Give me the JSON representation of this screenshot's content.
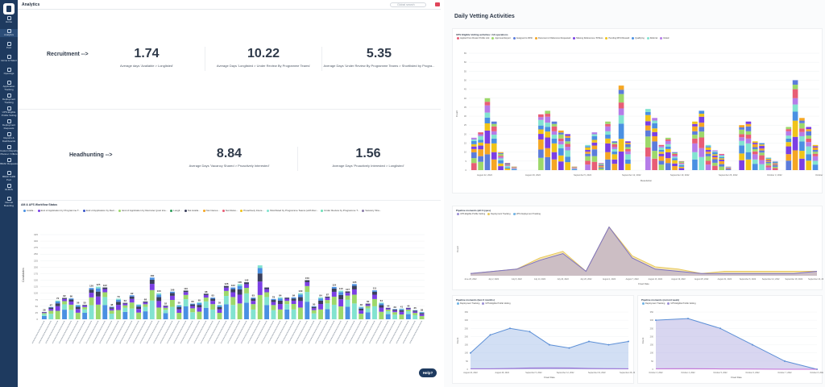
{
  "app": {
    "page_title": "Analytics",
    "search_placeholder": "Global search",
    "help_label": "Help?"
  },
  "sidebar": {
    "items": [
      {
        "label": "Home",
        "icon": "home-icon"
      },
      {
        "label": "Analytics",
        "icon": "chart-icon"
      },
      {
        "label": "Pool",
        "icon": "pool-icon"
      },
      {
        "label": "Home & Talent",
        "icon": "talent-icon"
      },
      {
        "label": "Openings",
        "icon": "openings-icon"
      },
      {
        "label": "Application Tracking",
        "icon": "tracking-icon"
      },
      {
        "label": "Deployment Tracking",
        "icon": "deploy-icon"
      },
      {
        "label": "UPS Eligible Profile Vetting",
        "icon": "vetting-icon"
      },
      {
        "label": "Deployment Requests",
        "icon": "request-icon"
      },
      {
        "label": "Reports & Dashboards",
        "icon": "reports-icon"
      },
      {
        "label": "Custom Reports Planner / Offers",
        "icon": "planner-icon"
      },
      {
        "label": "BRAF Requests",
        "icon": "braf-icon"
      },
      {
        "label": "BRAF Fulfill Pool",
        "icon": "fulfill-icon"
      },
      {
        "label": "ID-B4S",
        "icon": "id-icon"
      },
      {
        "label": "Internal Boarding",
        "icon": "boarding-icon"
      }
    ]
  },
  "kpis": {
    "recruitment_label": "Recruitment -->",
    "headhunting_label": "Headhunting -->",
    "cards": [
      {
        "value": "1.74",
        "label": "Average days 'Available > Longlisted'"
      },
      {
        "value": "10.22",
        "label": "Average Days 'Longlisted > Under Review By Programme Teams'"
      },
      {
        "value": "5.35",
        "label": "Average Days 'Under Review By Programme Teams > Shortlisted by Progra..."
      },
      {
        "value": "8.84",
        "label": "Average Days 'Vacancy Shared > Proactively Interested'"
      },
      {
        "value": "1.56",
        "label": "Average Days 'Proactively Interested > Longlisted'"
      }
    ]
  },
  "bottom_chart": {
    "title": "AM & AFS Workflow Status",
    "legend": [
      "Availa...",
      "End of Application by Programme T...",
      "End of Application by Recr...",
      "End of Application by Recruiter (post inte...",
      "Longli...",
      "Not Availa...",
      "Not Interes...",
      "Not Relev...",
      "Proactively Intere...",
      "Shortlisted by Programme Teams (with Rec...",
      "Under Review by Programme T...",
      "Vacancy Sha..."
    ],
    "ylabel": "Candidates",
    "yticks": [
      "0",
      "25",
      "50",
      "75",
      "100",
      "125",
      "150",
      "175",
      "200",
      "225",
      "250",
      "275",
      "300",
      "325"
    ],
    "colors": [
      "#4a90e2",
      "#7b3fe4",
      "#3a56c9",
      "#9dd86a",
      "#2e9e5b",
      "#3a3f5c",
      "#f5a623",
      "#e85d75",
      "#f0c419",
      "#82e3d0",
      "#6ee0b8",
      "#8a7ca8"
    ],
    "totals": [
      28,
      47,
      72,
      82,
      80,
      56,
      55,
      120,
      125,
      122,
      48,
      79,
      63,
      92,
      57,
      68,
      160,
      100,
      52,
      106,
      55,
      110,
      60,
      65,
      98,
      83,
      55,
      128,
      122,
      135,
      142,
      83,
      207,
      122,
      78,
      84,
      83,
      84,
      100,
      150,
      50,
      84,
      87,
      124,
      110,
      107,
      135,
      48,
      60,
      111,
      64,
      44,
      39,
      41,
      44,
      35,
      28
    ],
    "data_labels": [
      "28",
      "47",
      "72",
      "82",
      "80",
      "56",
      "55",
      "120",
      "125",
      "122",
      "48",
      "79",
      "63",
      "92",
      "",
      "68",
      "160",
      "100",
      "52",
      "106",
      "55",
      "110",
      "60",
      "65",
      "98",
      "83",
      "55",
      "128",
      "122",
      "135",
      "142",
      "83",
      "",
      "",
      "78",
      "84",
      "",
      "84",
      "100",
      "150",
      "50",
      "84",
      "87",
      "124",
      "110",
      "107",
      "135",
      "48",
      "60",
      "111",
      "64",
      "44",
      "39",
      "41",
      "44",
      "35",
      "28"
    ]
  },
  "right": {
    "section_title": "Daily Vetting Activities",
    "vetting_chart": {
      "title": "UPS Eligible Vetting activities / All operations",
      "legend": [
        "Applied from Roster Profile Link",
        "Approved Expert",
        "Assigned to RFSI",
        "Document & Reference Requested",
        "Missing References / B Boxs",
        "Pending RFSI Reward",
        "Qualifying",
        "Referral",
        "Vetted"
      ],
      "colors": [
        "#e85d75",
        "#9dd86a",
        "#5c7cdb",
        "#f5a623",
        "#7b3fe4",
        "#f0c419",
        "#4a90e2",
        "#82e3d0",
        "#b57ce8"
      ],
      "ylabel": "Count",
      "xlabel": "Resolution",
      "dates": [
        "August 22, 2022",
        "August 29, 2022",
        "September 5, 2022",
        "September 12, 2022",
        "September 19, 2022",
        "September 26, 2022",
        "October 3, 2022",
        "October 10, 2022"
      ],
      "yticks": [
        "0",
        "5",
        "10",
        "15",
        "20",
        "25",
        "30",
        "35",
        "40",
        "45",
        "50",
        "55",
        "60",
        "65"
      ],
      "totals": [
        18,
        21,
        40,
        27,
        10,
        4,
        2,
        0,
        0,
        0,
        31,
        33,
        27,
        22,
        20,
        2,
        0,
        14,
        21,
        4,
        27,
        16,
        47,
        16,
        0,
        0,
        34,
        29,
        14,
        18,
        10,
        5,
        0,
        27,
        33,
        14,
        11,
        9,
        2,
        0,
        25,
        27,
        16,
        15,
        7,
        5,
        0,
        24,
        50,
        29,
        24,
        14
      ],
      "top_labels": [
        "",
        "",
        "",
        "",
        "",
        "",
        "",
        "",
        "",
        "",
        "",
        "",
        "",
        "",
        "",
        "",
        "",
        "",
        "",
        "",
        "",
        "",
        "",
        "",
        "",
        "",
        "",
        "",
        "",
        "",
        "",
        "",
        "",
        "",
        "",
        "",
        "",
        "",
        "",
        "",
        "",
        "",
        "",
        "",
        "",
        "",
        "",
        "",
        "",
        "",
        "",
        ""
      ]
    },
    "area1": {
      "title": "Pipeline moments (all 3 types)",
      "legend": [
        "UPS Eligible Profile Vetting",
        "Deployment Tracking",
        "UPS Deployment Tracking"
      ],
      "colors": [
        "#9b8fd6",
        "#e8c85a",
        "#6fb3e6"
      ],
      "xlabel": "Fixed Date",
      "ylabel": "Count",
      "dates": [
        "June 26, 2022",
        "July 2, 2022",
        "July 8, 2022",
        "July 14, 2022",
        "July 20, 2022",
        "July 26, 2022",
        "August 1, 2022",
        "August 7, 2022",
        "August 13, 2022",
        "August 19, 2022",
        "August 25, 2022",
        "August 31, 2022",
        "September 6, 2022",
        "September 12, 2022",
        "September 18, 2022",
        "September 24, 2022"
      ],
      "series_main": [
        1,
        2,
        3,
        7,
        10,
        2,
        22,
        8,
        3,
        2,
        1,
        1,
        1,
        1,
        1,
        2
      ],
      "series_secondary": [
        1,
        2,
        3,
        8,
        11,
        2,
        22,
        9,
        4,
        3,
        1,
        2,
        2,
        2,
        2,
        2
      ]
    },
    "area2": {
      "title": "Pipeline moments (last 3 months)",
      "legend": [
        "Deployment Tracking",
        "UPS Eligible Profile Vetting"
      ],
      "colors": [
        "#6fb3e6",
        "#9b8fd6"
      ],
      "xlabel": "Fixed Date",
      "ylabel": "Count",
      "dates": [
        "August 22, 2022",
        "August 29, 2022",
        "September 5, 2022",
        "September 12, 2022",
        "September 19, 2022",
        "September 26, 2022"
      ],
      "yticks": [
        "0",
        "50",
        "100",
        "150",
        "200",
        "250",
        "300",
        "350"
      ],
      "main": [
        100,
        210,
        250,
        230,
        150,
        130,
        170,
        150,
        170
      ],
      "lower": [
        3,
        3,
        5,
        8,
        9,
        8,
        5,
        4,
        3
      ]
    },
    "area3": {
      "title": "Pipeline moments (current week)",
      "legend": [
        "Deployment Tracking",
        "UPS Eligible Profile Vetting"
      ],
      "colors": [
        "#6fb3e6",
        "#9b8fd6"
      ],
      "xlabel": "Fixed Date",
      "ylabel": "Count",
      "dates": [
        "October 3, 2022",
        "October 4, 2022",
        "October 5, 2022",
        "October 6, 2022",
        "October 7, 2022",
        "October 8, 2022"
      ],
      "yticks": [
        "0",
        "50",
        "100",
        "150",
        "200",
        "250",
        "300",
        "350"
      ],
      "main": [
        300,
        310,
        250,
        150,
        50,
        0
      ],
      "lower": [
        3,
        4,
        2,
        1,
        0,
        0
      ]
    }
  }
}
